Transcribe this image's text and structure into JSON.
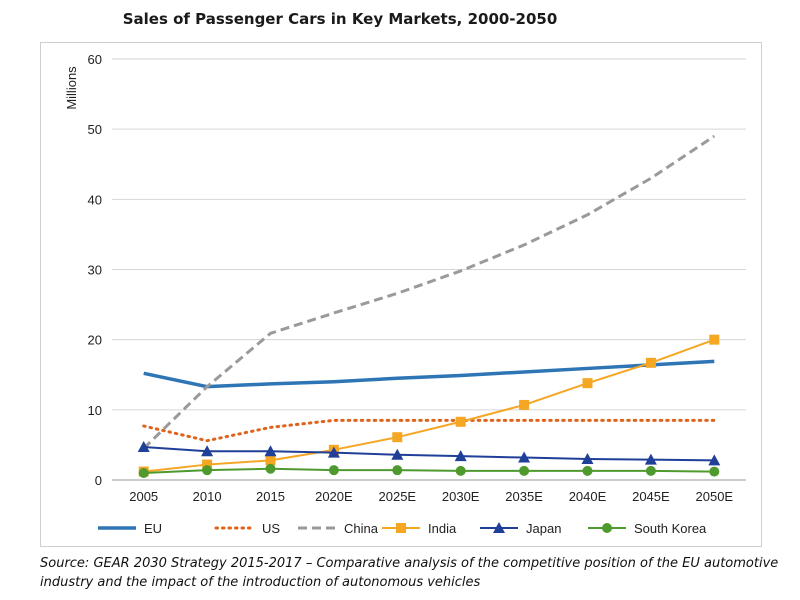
{
  "chart_data": {
    "type": "line",
    "title": "Sales of Passenger Cars in Key Markets, 2000-2050",
    "ylabel": "Millions",
    "xlabel": "",
    "categories": [
      "2005",
      "2010",
      "2015",
      "2020E",
      "2025E",
      "2030E",
      "2035E",
      "2040E",
      "2045E",
      "2050E"
    ],
    "yticks": [
      "0",
      "10",
      "20",
      "30",
      "40",
      "50",
      "60"
    ],
    "ylim": [
      0,
      60
    ],
    "grid": true,
    "legend": "bottom",
    "series": [
      {
        "name": "EU",
        "color": "#2e75b6",
        "style": "solid-thick",
        "marker": "none",
        "values": [
          15.2,
          13.3,
          13.7,
          14.0,
          14.5,
          14.9,
          15.4,
          15.9,
          16.4,
          16.9
        ]
      },
      {
        "name": "US",
        "color": "#e0631c",
        "style": "dotted",
        "marker": "none",
        "values": [
          7.7,
          5.6,
          7.5,
          8.5,
          8.5,
          8.5,
          8.5,
          8.5,
          8.5,
          8.5
        ]
      },
      {
        "name": "China",
        "color": "#9a9a9a",
        "style": "dashed",
        "marker": "none",
        "values": [
          4.5,
          13.3,
          20.9,
          23.8,
          26.6,
          29.8,
          33.5,
          37.8,
          43.0,
          49.0
        ]
      },
      {
        "name": "India",
        "color": "#f5a623",
        "style": "solid",
        "marker": "square",
        "values": [
          1.2,
          2.2,
          2.8,
          4.3,
          6.1,
          8.3,
          10.7,
          13.8,
          16.7,
          20.0
        ]
      },
      {
        "name": "Japan",
        "color": "#1f3f99",
        "style": "solid",
        "marker": "triangle",
        "values": [
          4.7,
          4.1,
          4.1,
          3.9,
          3.6,
          3.4,
          3.2,
          3.0,
          2.9,
          2.8
        ]
      },
      {
        "name": "South Korea",
        "color": "#4f9a2e",
        "style": "solid",
        "marker": "circle",
        "values": [
          1.0,
          1.4,
          1.6,
          1.4,
          1.4,
          1.3,
          1.3,
          1.3,
          1.3,
          1.2
        ]
      }
    ]
  },
  "source": "Source: GEAR 2030 Strategy 2015-2017 – Comparative analysis of the competitive position of the EU automotive industry and the impact of the introduction of autonomous vehicles"
}
